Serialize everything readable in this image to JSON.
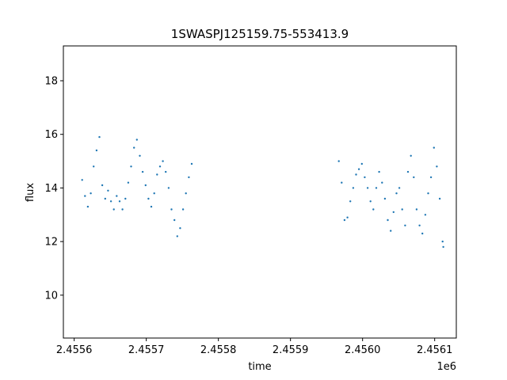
{
  "chart_data": {
    "type": "scatter",
    "title": "1SWASPJ125159.75-553413.9",
    "xlabel": "time",
    "ylabel": "flux",
    "x_offset_label": "1e6",
    "xlim": [
      2455585,
      2456130
    ],
    "ylim": [
      8.4,
      19.3
    ],
    "xticks": [
      2455600,
      2455700,
      2455800,
      2455900,
      2456000,
      2456100
    ],
    "xtick_labels": [
      "2.4556",
      "2.4557",
      "2.4558",
      "2.4559",
      "2.4560",
      "2.4561"
    ],
    "yticks": [
      10,
      12,
      14,
      16,
      18
    ],
    "ytick_labels": [
      "10",
      "12",
      "14",
      "16",
      "18"
    ],
    "grid": false,
    "marker_color": "#1f77b4",
    "series": [
      {
        "segments": [
          {
            "x": [
              2455611,
              2455615,
              2455619,
              2455623,
              2455627,
              2455631,
              2455635,
              2455639,
              2455643,
              2455647,
              2455651,
              2455655,
              2455659,
              2455663,
              2455667,
              2455671,
              2455675,
              2455679,
              2455683,
              2455687,
              2455691,
              2455695,
              2455699,
              2455703,
              2455707,
              2455711,
              2455715,
              2455719,
              2455723,
              2455727,
              2455731,
              2455735,
              2455739,
              2455743,
              2455747,
              2455751,
              2455755,
              2455759,
              2455763
            ],
            "y": [
              14.3,
              13.7,
              13.3,
              13.8,
              14.8,
              15.4,
              15.9,
              14.1,
              13.6,
              13.9,
              13.5,
              13.2,
              13.7,
              13.5,
              13.2,
              13.6,
              14.2,
              14.8,
              15.5,
              15.8,
              15.2,
              14.6,
              14.1,
              13.6,
              13.3,
              13.8,
              14.5,
              14.8,
              15.0,
              14.6,
              14.0,
              13.2,
              12.8,
              12.2,
              12.5,
              13.2,
              13.8,
              14.4,
              14.9
            ]
          },
          {
            "x": [
              2455967,
              2455971,
              2455975,
              2455979,
              2455983,
              2455987,
              2455991,
              2455995,
              2455999,
              2456003,
              2456007,
              2456011,
              2456015,
              2456019,
              2456023,
              2456027,
              2456031,
              2456035,
              2456039,
              2456043,
              2456047,
              2456051,
              2456055,
              2456059,
              2456063,
              2456067,
              2456071,
              2456075,
              2456079,
              2456083,
              2456087,
              2456091,
              2456095,
              2456099,
              2456103,
              2456107
            ],
            "y": [
              15.0,
              14.2,
              12.8,
              12.9,
              13.5,
              14.0,
              14.5,
              14.7,
              14.9,
              14.4,
              14.0,
              13.5,
              13.2,
              14.0,
              14.6,
              14.2,
              13.6,
              12.8,
              12.4,
              13.1,
              13.8,
              14.0,
              13.2,
              12.6,
              14.6,
              15.2,
              14.4,
              13.2,
              12.6,
              12.3,
              13.0,
              13.8,
              14.4,
              15.5,
              14.8,
              13.6
            ]
          },
          {
            "x": [
              2456111,
              2456112
            ],
            "y": [
              12.0,
              11.8
            ]
          }
        ]
      }
    ]
  }
}
